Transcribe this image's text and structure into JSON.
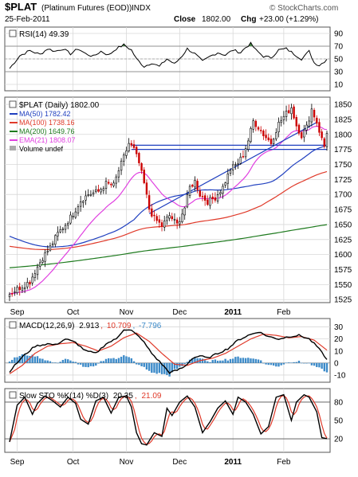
{
  "header": {
    "symbol": "$PLAT",
    "name": "(Platinum Futures (EOD))",
    "exchange": "INDX",
    "date": "25-Feb-2011",
    "close_label": "Close",
    "close_value": "1802.00",
    "chg_label": "Chg",
    "chg_value": "+23.00 (+1.29%)",
    "watermark": "© StockCharts.com"
  },
  "colors": {
    "price": "#000000",
    "ma50": "#1f3fbf",
    "ma100": "#e03a2a",
    "ma200": "#1e7a1e",
    "ema21": "#e040e0",
    "macd": "#000000",
    "signal": "#e03a2a",
    "histogram": "#3d8bc9",
    "rsi_fill": "#4a8a4a",
    "grid": "#d8d8d8"
  },
  "x_months": [
    "Sep",
    "Oct",
    "Nov",
    "Dec",
    "2011",
    "Feb"
  ],
  "panels": {
    "rsi": {
      "legend": "RSI(14) 49.39",
      "ticks": [
        "90",
        "70",
        "50",
        "30",
        "10"
      ]
    },
    "price": {
      "legend_title": "$PLAT (Daily) 1802.00",
      "legend_items": [
        {
          "key": "ma50",
          "text": "MA(50) 1782.42"
        },
        {
          "key": "ma100",
          "text": "MA(100) 1738.16"
        },
        {
          "key": "ma200",
          "text": "MA(200) 1649.76"
        },
        {
          "key": "ema21",
          "text": "EMA(21) 1808.07"
        },
        {
          "key": "volume",
          "text": "Volume undef"
        }
      ],
      "ticks": [
        "1850",
        "1825",
        "1800",
        "1775",
        "1750",
        "1725",
        "1700",
        "1675",
        "1650",
        "1625",
        "1600",
        "1575",
        "1550",
        "1525"
      ]
    },
    "macd": {
      "legend_prefix": "MACD(12,26,9)",
      "legend_v1": "2.913",
      "legend_v2": "10.709",
      "legend_v3": "-7.796",
      "ticks": [
        "30",
        "20",
        "10",
        "0",
        "-10"
      ]
    },
    "sto": {
      "legend_prefix": "Slow STO %K(14) %D(3)",
      "legend_k": "20.35",
      "legend_d": "21.09",
      "ticks": [
        "80",
        "50",
        "20"
      ]
    }
  },
  "chart_data": {
    "type": "line",
    "price_ylim": [
      1520,
      1862
    ],
    "price_anchors": [
      [
        0,
        1535
      ],
      [
        4,
        1545
      ],
      [
        8,
        1555
      ],
      [
        10,
        1572
      ],
      [
        13,
        1595
      ],
      [
        16,
        1612
      ],
      [
        19,
        1635
      ],
      [
        22,
        1650
      ],
      [
        25,
        1668
      ],
      [
        28,
        1690
      ],
      [
        31,
        1700
      ],
      [
        35,
        1705
      ],
      [
        38,
        1718
      ],
      [
        41,
        1715
      ],
      [
        43,
        1740
      ],
      [
        45,
        1762
      ],
      [
        47,
        1785
      ],
      [
        49,
        1775
      ],
      [
        51,
        1752
      ],
      [
        53,
        1718
      ],
      [
        55,
        1676
      ],
      [
        57,
        1660
      ],
      [
        60,
        1648
      ],
      [
        63,
        1665
      ],
      [
        66,
        1650
      ],
      [
        69,
        1678
      ],
      [
        71,
        1712
      ],
      [
        73,
        1722
      ],
      [
        75,
        1700
      ],
      [
        78,
        1688
      ],
      [
        81,
        1695
      ],
      [
        84,
        1712
      ],
      [
        87,
        1742
      ],
      [
        90,
        1752
      ],
      [
        92,
        1766
      ],
      [
        94,
        1790
      ],
      [
        96,
        1822
      ],
      [
        98,
        1812
      ],
      [
        100,
        1800
      ],
      [
        103,
        1786
      ],
      [
        106,
        1818
      ],
      [
        109,
        1835
      ],
      [
        111,
        1845
      ],
      [
        113,
        1815
      ],
      [
        115,
        1798
      ],
      [
        117,
        1812
      ],
      [
        119,
        1842
      ],
      [
        121,
        1820
      ],
      [
        123,
        1792
      ],
      [
        124,
        1780
      ],
      [
        125,
        1802
      ]
    ],
    "n_bars": 126,
    "horizontal_lines": [
      1775,
      1782
    ],
    "trendline": [
      [
        55,
        1668
      ],
      [
        121,
        1820
      ]
    ],
    "rsi_anchors": [
      [
        0,
        35
      ],
      [
        4,
        55
      ],
      [
        8,
        63
      ],
      [
        12,
        57
      ],
      [
        15,
        66
      ],
      [
        18,
        62
      ],
      [
        21,
        66
      ],
      [
        24,
        58
      ],
      [
        27,
        66
      ],
      [
        30,
        58
      ],
      [
        33,
        54
      ],
      [
        36,
        62
      ],
      [
        39,
        56
      ],
      [
        42,
        66
      ],
      [
        45,
        72
      ],
      [
        48,
        64
      ],
      [
        50,
        50
      ],
      [
        53,
        38
      ],
      [
        56,
        44
      ],
      [
        59,
        38
      ],
      [
        62,
        50
      ],
      [
        65,
        42
      ],
      [
        68,
        55
      ],
      [
        70,
        66
      ],
      [
        73,
        58
      ],
      [
        76,
        46
      ],
      [
        79,
        54
      ],
      [
        82,
        60
      ],
      [
        85,
        56
      ],
      [
        88,
        64
      ],
      [
        91,
        60
      ],
      [
        93,
        68
      ],
      [
        95,
        74
      ],
      [
        97,
        64
      ],
      [
        100,
        54
      ],
      [
        103,
        52
      ],
      [
        106,
        64
      ],
      [
        109,
        66
      ],
      [
        112,
        58
      ],
      [
        115,
        50
      ],
      [
        118,
        62
      ],
      [
        120,
        44
      ],
      [
        122,
        40
      ],
      [
        124,
        46
      ],
      [
        125,
        49.39
      ]
    ],
    "macd_ylim": [
      -16,
      37
    ],
    "macd_anchors": [
      [
        0,
        -7
      ],
      [
        5,
        5
      ],
      [
        10,
        14
      ],
      [
        15,
        16
      ],
      [
        18,
        15
      ],
      [
        22,
        20
      ],
      [
        26,
        17
      ],
      [
        30,
        10
      ],
      [
        34,
        8
      ],
      [
        38,
        16
      ],
      [
        42,
        20
      ],
      [
        45,
        28
      ],
      [
        48,
        27
      ],
      [
        52,
        20
      ],
      [
        56,
        8
      ],
      [
        60,
        -1
      ],
      [
        63,
        -8
      ],
      [
        66,
        -6
      ],
      [
        69,
        -3
      ],
      [
        72,
        4
      ],
      [
        75,
        6
      ],
      [
        78,
        4
      ],
      [
        82,
        8
      ],
      [
        86,
        12
      ],
      [
        90,
        19
      ],
      [
        94,
        23
      ],
      [
        98,
        26
      ],
      [
        102,
        22
      ],
      [
        106,
        20
      ],
      [
        110,
        22
      ],
      [
        114,
        23
      ],
      [
        118,
        20
      ],
      [
        121,
        14
      ],
      [
        124,
        6
      ],
      [
        125,
        2.913
      ]
    ],
    "signal_anchors": [
      [
        0,
        -9
      ],
      [
        5,
        -2
      ],
      [
        10,
        8
      ],
      [
        15,
        14
      ],
      [
        20,
        16
      ],
      [
        25,
        17
      ],
      [
        30,
        14
      ],
      [
        35,
        10
      ],
      [
        40,
        14
      ],
      [
        45,
        21
      ],
      [
        50,
        25
      ],
      [
        55,
        18
      ],
      [
        60,
        8
      ],
      [
        65,
        -1
      ],
      [
        70,
        -2
      ],
      [
        75,
        2
      ],
      [
        80,
        4
      ],
      [
        85,
        8
      ],
      [
        90,
        14
      ],
      [
        95,
        20
      ],
      [
        100,
        24
      ],
      [
        105,
        23
      ],
      [
        110,
        21
      ],
      [
        115,
        22
      ],
      [
        120,
        19
      ],
      [
        125,
        10.709
      ]
    ],
    "sto_anchors": [
      [
        0,
        15
      ],
      [
        3,
        75
      ],
      [
        6,
        88
      ],
      [
        9,
        60
      ],
      [
        11,
        78
      ],
      [
        14,
        90
      ],
      [
        17,
        82
      ],
      [
        20,
        72
      ],
      [
        23,
        88
      ],
      [
        26,
        78
      ],
      [
        28,
        52
      ],
      [
        31,
        44
      ],
      [
        34,
        82
      ],
      [
        37,
        88
      ],
      [
        40,
        62
      ],
      [
        43,
        88
      ],
      [
        46,
        90
      ],
      [
        48,
        72
      ],
      [
        50,
        30
      ],
      [
        52,
        12
      ],
      [
        54,
        10
      ],
      [
        57,
        30
      ],
      [
        60,
        24
      ],
      [
        62,
        70
      ],
      [
        64,
        58
      ],
      [
        67,
        80
      ],
      [
        70,
        90
      ],
      [
        73,
        72
      ],
      [
        76,
        30
      ],
      [
        79,
        48
      ],
      [
        82,
        70
      ],
      [
        85,
        82
      ],
      [
        88,
        60
      ],
      [
        90,
        88
      ],
      [
        93,
        80
      ],
      [
        96,
        60
      ],
      [
        99,
        28
      ],
      [
        102,
        40
      ],
      [
        105,
        88
      ],
      [
        108,
        92
      ],
      [
        111,
        50
      ],
      [
        113,
        80
      ],
      [
        116,
        92
      ],
      [
        118,
        88
      ],
      [
        121,
        64
      ],
      [
        123,
        22
      ],
      [
        125,
        20.35
      ]
    ],
    "sto_d_lag": 2,
    "month_starts": [
      3,
      25,
      46,
      67,
      88,
      108
    ]
  }
}
